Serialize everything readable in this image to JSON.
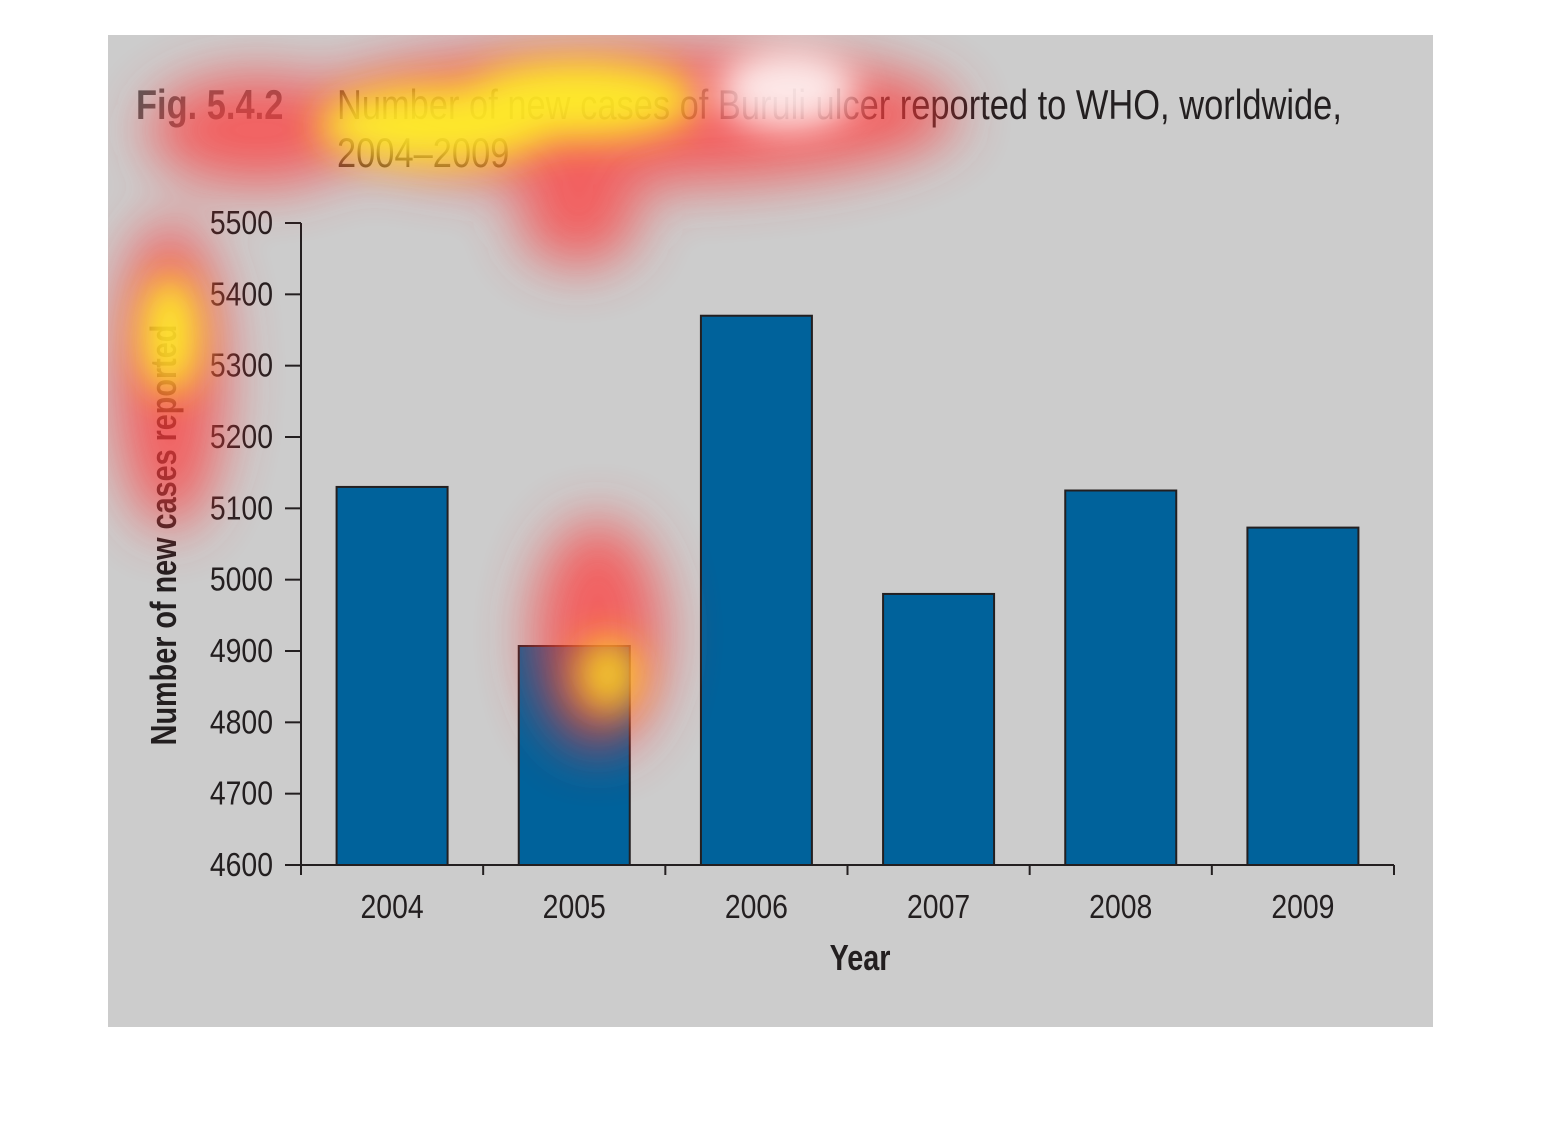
{
  "figure": {
    "label": "Fig. 5.4.2",
    "title": "Number of new cases of Buruli ulcer reported to WHO, worldwide, 2004–2009"
  },
  "chart_data": {
    "type": "bar",
    "categories": [
      "2004",
      "2005",
      "2006",
      "2007",
      "2008",
      "2009"
    ],
    "values": [
      5130,
      4907,
      5370,
      4980,
      5125,
      5073
    ],
    "xlabel": "Year",
    "ylabel": "Number of new cases reported",
    "ylim": [
      4600,
      5500
    ],
    "yticks": [
      4600,
      4700,
      4800,
      4900,
      5000,
      5100,
      5200,
      5300,
      5400,
      5500
    ],
    "grid": false,
    "legend": "none",
    "bar_color": "#00629b",
    "background_color": "#cccccc"
  },
  "heatmap_overlay": {
    "colors": [
      "#ff0000",
      "#ffff00"
    ],
    "hotspots": [
      "figure title",
      "y-axis label",
      "2005 bar top"
    ]
  }
}
